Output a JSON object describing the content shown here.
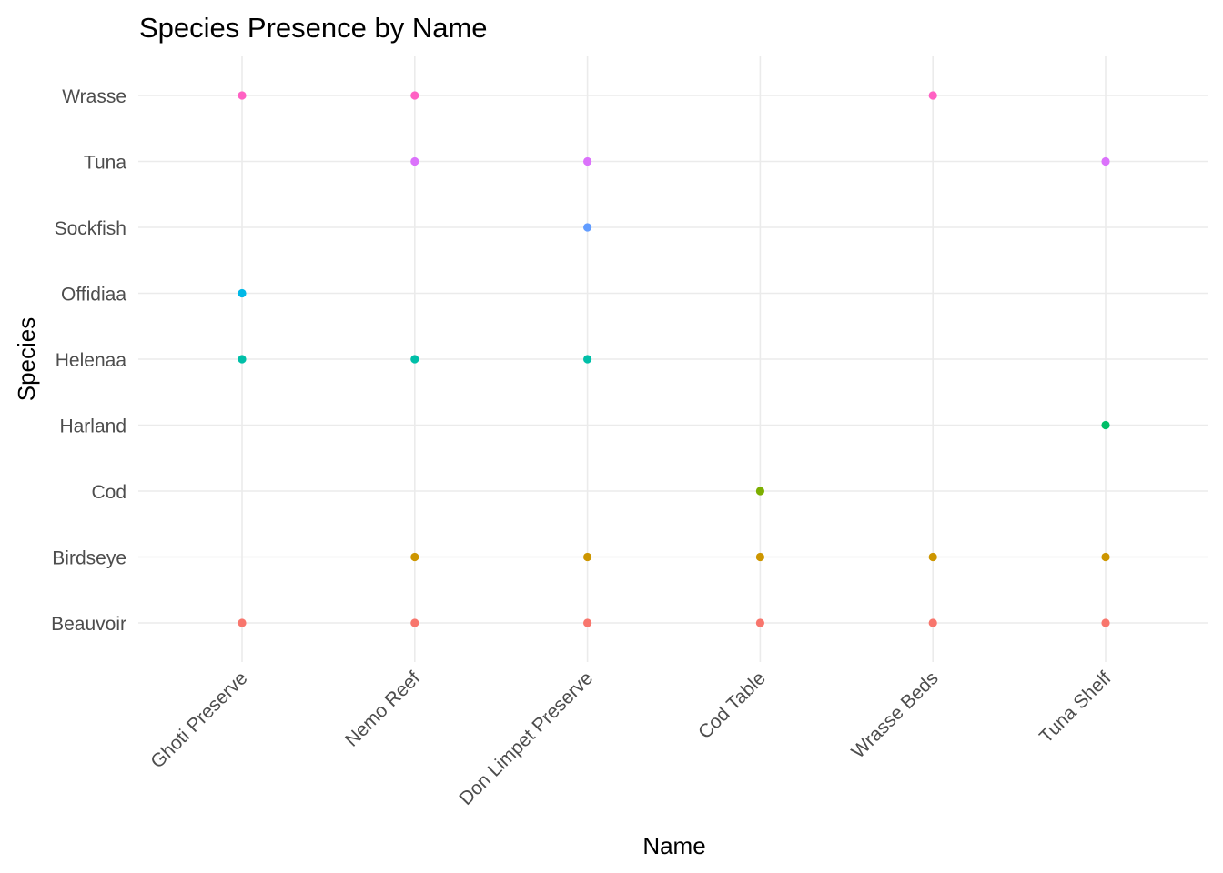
{
  "chart_data": {
    "type": "scatter",
    "title": "Species Presence by Name",
    "xlabel": "Name",
    "ylabel": "Species",
    "grid": true,
    "legend": "none",
    "x_categories": [
      "Ghoti Preserve",
      "Nemo Reef",
      "Don Limpet Preserve",
      "Cod Table",
      "Wrasse Beds",
      "Tuna Shelf"
    ],
    "y_categories": [
      "Beauvoir",
      "Birdseye",
      "Cod",
      "Harland",
      "Helenaa",
      "Offidiaa",
      "Sockfish",
      "Tuna",
      "Wrasse"
    ],
    "species_colors": {
      "Beauvoir": "#F8766D",
      "Birdseye": "#CD9600",
      "Cod": "#7CAE00",
      "Harland": "#00BE67",
      "Helenaa": "#00BFA8",
      "Offidiaa": "#00B8E7",
      "Sockfish": "#619CFF",
      "Tuna": "#DB72FB",
      "Wrasse": "#FF61C3"
    },
    "points": [
      {
        "x": "Ghoti Preserve",
        "y": "Beauvoir"
      },
      {
        "x": "Ghoti Preserve",
        "y": "Helenaa"
      },
      {
        "x": "Ghoti Preserve",
        "y": "Offidiaa"
      },
      {
        "x": "Ghoti Preserve",
        "y": "Wrasse"
      },
      {
        "x": "Nemo Reef",
        "y": "Beauvoir"
      },
      {
        "x": "Nemo Reef",
        "y": "Birdseye"
      },
      {
        "x": "Nemo Reef",
        "y": "Helenaa"
      },
      {
        "x": "Nemo Reef",
        "y": "Tuna"
      },
      {
        "x": "Nemo Reef",
        "y": "Wrasse"
      },
      {
        "x": "Don Limpet Preserve",
        "y": "Beauvoir"
      },
      {
        "x": "Don Limpet Preserve",
        "y": "Birdseye"
      },
      {
        "x": "Don Limpet Preserve",
        "y": "Helenaa"
      },
      {
        "x": "Don Limpet Preserve",
        "y": "Sockfish"
      },
      {
        "x": "Don Limpet Preserve",
        "y": "Tuna"
      },
      {
        "x": "Cod Table",
        "y": "Beauvoir"
      },
      {
        "x": "Cod Table",
        "y": "Birdseye"
      },
      {
        "x": "Cod Table",
        "y": "Cod"
      },
      {
        "x": "Wrasse Beds",
        "y": "Beauvoir"
      },
      {
        "x": "Wrasse Beds",
        "y": "Birdseye"
      },
      {
        "x": "Wrasse Beds",
        "y": "Wrasse"
      },
      {
        "x": "Tuna Shelf",
        "y": "Beauvoir"
      },
      {
        "x": "Tuna Shelf",
        "y": "Birdseye"
      },
      {
        "x": "Tuna Shelf",
        "y": "Harland"
      },
      {
        "x": "Tuna Shelf",
        "y": "Tuna"
      }
    ]
  }
}
